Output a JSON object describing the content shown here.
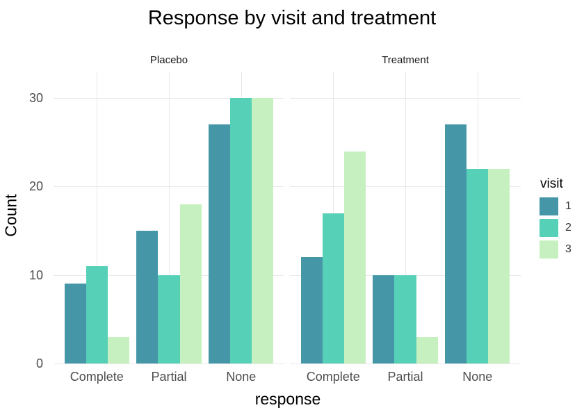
{
  "chart_data": {
    "type": "bar",
    "mode": "grouped-dodged-faceted",
    "title": "Response by visit and treatment",
    "xlabel": "response",
    "ylabel": "Count",
    "categories": [
      "Complete",
      "Partial",
      "None"
    ],
    "yticks": [
      0,
      10,
      20,
      30
    ],
    "ylim": [
      0,
      33
    ],
    "grid": {
      "horizontal": true,
      "vertical_at_category_centers": true,
      "color": "#e8e8e8"
    },
    "background": "#ffffff",
    "facets": [
      {
        "label": "Placebo",
        "series": [
          {
            "name": "1",
            "values": [
              9,
              15,
              27
            ]
          },
          {
            "name": "2",
            "values": [
              11,
              10,
              30
            ]
          },
          {
            "name": "3",
            "values": [
              3,
              18,
              30
            ]
          }
        ]
      },
      {
        "label": "Treatment",
        "series": [
          {
            "name": "1",
            "values": [
              12,
              10,
              27
            ]
          },
          {
            "name": "2",
            "values": [
              17,
              10,
              22
            ]
          },
          {
            "name": "3",
            "values": [
              24,
              3,
              22
            ]
          }
        ]
      }
    ],
    "legend": {
      "title": "visit",
      "position": "right",
      "entries": [
        {
          "label": "1",
          "color": "#4597a8"
        },
        {
          "label": "2",
          "color": "#57d0b8"
        },
        {
          "label": "3",
          "color": "#c6f0bf"
        }
      ]
    },
    "text_colors": {
      "title": "#000000",
      "axis_title": "#000000",
      "tick_label": "#4d4d4d",
      "strip_label": "#1a1a1a"
    }
  }
}
